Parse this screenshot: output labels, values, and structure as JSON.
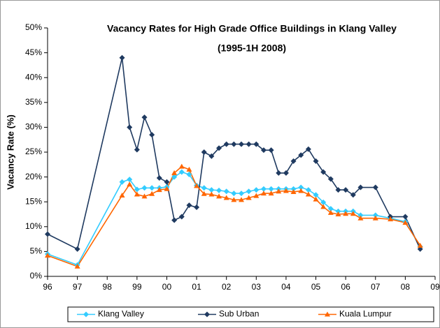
{
  "chart_data": {
    "type": "line",
    "title": "Vacancy Rates for High Grade Office Buildings in Klang Valley",
    "subtitle": "(1995-1H 2008)",
    "y_label": "Vacancy Rate (%)",
    "x": [
      1996,
      1997,
      1998.5,
      1998.75,
      1999,
      1999.25,
      1999.5,
      1999.75,
      2000,
      2000.25,
      2000.5,
      2000.75,
      2001,
      2001.25,
      2001.5,
      2001.75,
      2002,
      2002.25,
      2002.5,
      2002.75,
      2003,
      2003.25,
      2003.5,
      2003.75,
      2004,
      2004.25,
      2004.5,
      2004.75,
      2005,
      2005.25,
      2005.5,
      2005.75,
      2006,
      2006.25,
      2006.5,
      2007,
      2007.5,
      2008,
      2008.5
    ],
    "series": [
      {
        "name": "Klang Valley",
        "color": "#33ccff",
        "marker": "diamond",
        "values": [
          4.5,
          2.3,
          19,
          19.5,
          17.5,
          17.8,
          17.8,
          17.8,
          18,
          20,
          21,
          20.5,
          18.3,
          17.8,
          17.4,
          17.3,
          17.1,
          16.7,
          16.7,
          17.1,
          17.4,
          17.6,
          17.6,
          17.6,
          17.6,
          17.6,
          17.9,
          17.4,
          16.4,
          14.9,
          13.6,
          13.1,
          13.1,
          13.1,
          12.3,
          12.3,
          11.7,
          11,
          6
        ]
      },
      {
        "name": "Sub Urban",
        "color": "#1f3a60",
        "marker": "diamond",
        "values": [
          8.5,
          5.5,
          44,
          30,
          25.5,
          32,
          28.5,
          19.8,
          19,
          11.3,
          12,
          14.3,
          13.9,
          25,
          24.2,
          25.8,
          26.6,
          26.6,
          26.6,
          26.6,
          26.6,
          25.4,
          25.4,
          20.8,
          20.8,
          23.2,
          24.4,
          25.6,
          23.2,
          21,
          19.6,
          17.4,
          17.4,
          16.4,
          17.9,
          17.9,
          12,
          12,
          5.5
        ]
      },
      {
        "name": "Kuala Lumpur",
        "color": "#ff6600",
        "marker": "triangle",
        "values": [
          4.2,
          2,
          16.3,
          18.5,
          16.5,
          16.1,
          16.6,
          17.4,
          17.6,
          20.8,
          22.1,
          21.5,
          18.2,
          16.6,
          16.5,
          16.1,
          15.8,
          15.4,
          15.4,
          15.8,
          16.2,
          16.7,
          16.7,
          17.1,
          17.2,
          17,
          17.2,
          16.5,
          15.5,
          14,
          12.8,
          12.5,
          12.6,
          12.6,
          11.7,
          11.7,
          11.5,
          10.8,
          6.2
        ]
      }
    ],
    "xlim": [
      1996,
      2009
    ],
    "xticks": [
      {
        "value": 1996,
        "label": "96"
      },
      {
        "value": 1997,
        "label": "97"
      },
      {
        "value": 1998,
        "label": "98"
      },
      {
        "value": 1999,
        "label": "99"
      },
      {
        "value": 2000,
        "label": "00"
      },
      {
        "value": 2001,
        "label": "01"
      },
      {
        "value": 2002,
        "label": "02"
      },
      {
        "value": 2003,
        "label": "03"
      },
      {
        "value": 2004,
        "label": "04"
      },
      {
        "value": 2005,
        "label": "05"
      },
      {
        "value": 2006,
        "label": "06"
      },
      {
        "value": 2007,
        "label": "07"
      },
      {
        "value": 2008,
        "label": "08"
      },
      {
        "value": 2009,
        "label": "09"
      }
    ],
    "ylim": [
      0,
      50
    ],
    "yticks": [
      {
        "value": 0,
        "label": "0%"
      },
      {
        "value": 5,
        "label": "5%"
      },
      {
        "value": 10,
        "label": "10%"
      },
      {
        "value": 15,
        "label": "15%"
      },
      {
        "value": 20,
        "label": "20%"
      },
      {
        "value": 25,
        "label": "25%"
      },
      {
        "value": 30,
        "label": "30%"
      },
      {
        "value": 35,
        "label": "35%"
      },
      {
        "value": 40,
        "label": "40%"
      },
      {
        "value": 45,
        "label": "45%"
      },
      {
        "value": 50,
        "label": "50%"
      }
    ],
    "grid": false,
    "legend": "bottom"
  }
}
